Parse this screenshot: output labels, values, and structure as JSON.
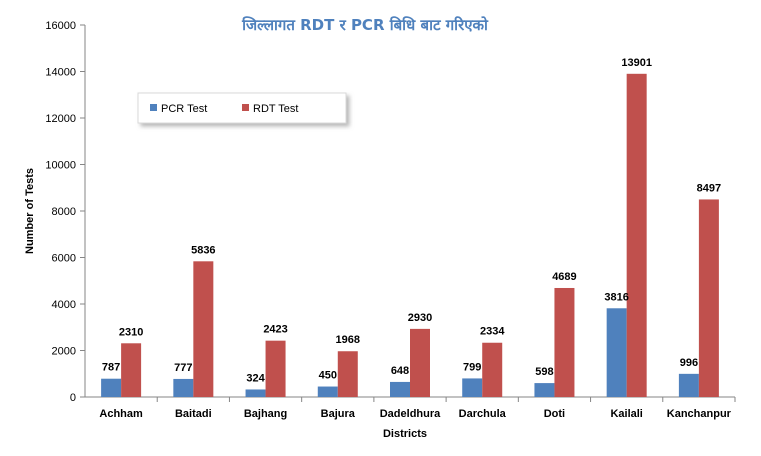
{
  "chart_data": {
    "type": "bar",
    "title": "जिल्लागत RDT र PCR बिधि बाट गरिएको",
    "xlabel": "Districts",
    "ylabel": "Number of Tests",
    "ylim": [
      0,
      16000
    ],
    "yticks": [
      0,
      2000,
      4000,
      6000,
      8000,
      10000,
      12000,
      14000,
      16000
    ],
    "grid": false,
    "legend_position": "upper-left",
    "categories": [
      "Achham",
      "Baitadi",
      "Bajhang",
      "Bajura",
      "Dadeldhura",
      "Darchula",
      "Doti",
      "Kailali",
      "Kanchanpur"
    ],
    "series": [
      {
        "name": "PCR Test",
        "color": "#4f81bd",
        "values": [
          787,
          777,
          324,
          450,
          648,
          799,
          598,
          3816,
          996
        ]
      },
      {
        "name": "RDT Test",
        "color": "#c0504d",
        "values": [
          2310,
          5836,
          2423,
          1968,
          2930,
          2334,
          4689,
          13901,
          8497
        ]
      }
    ],
    "title_color": "#4f81bd"
  }
}
